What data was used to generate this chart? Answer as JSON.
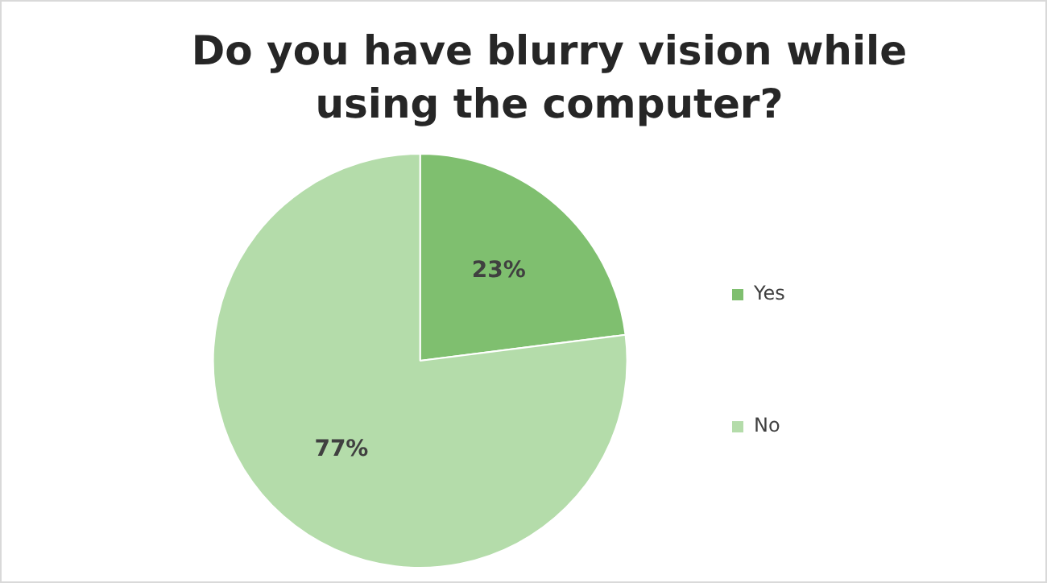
{
  "chart_data": {
    "type": "pie",
    "title": "Do you have blurry vision while using the computer?",
    "categories": [
      "Yes",
      "No"
    ],
    "values": [
      23,
      77
    ],
    "colors": [
      "#7fbf6f",
      "#b4dcaa"
    ],
    "value_labels": [
      "23%",
      "77%"
    ],
    "legend": "right"
  }
}
